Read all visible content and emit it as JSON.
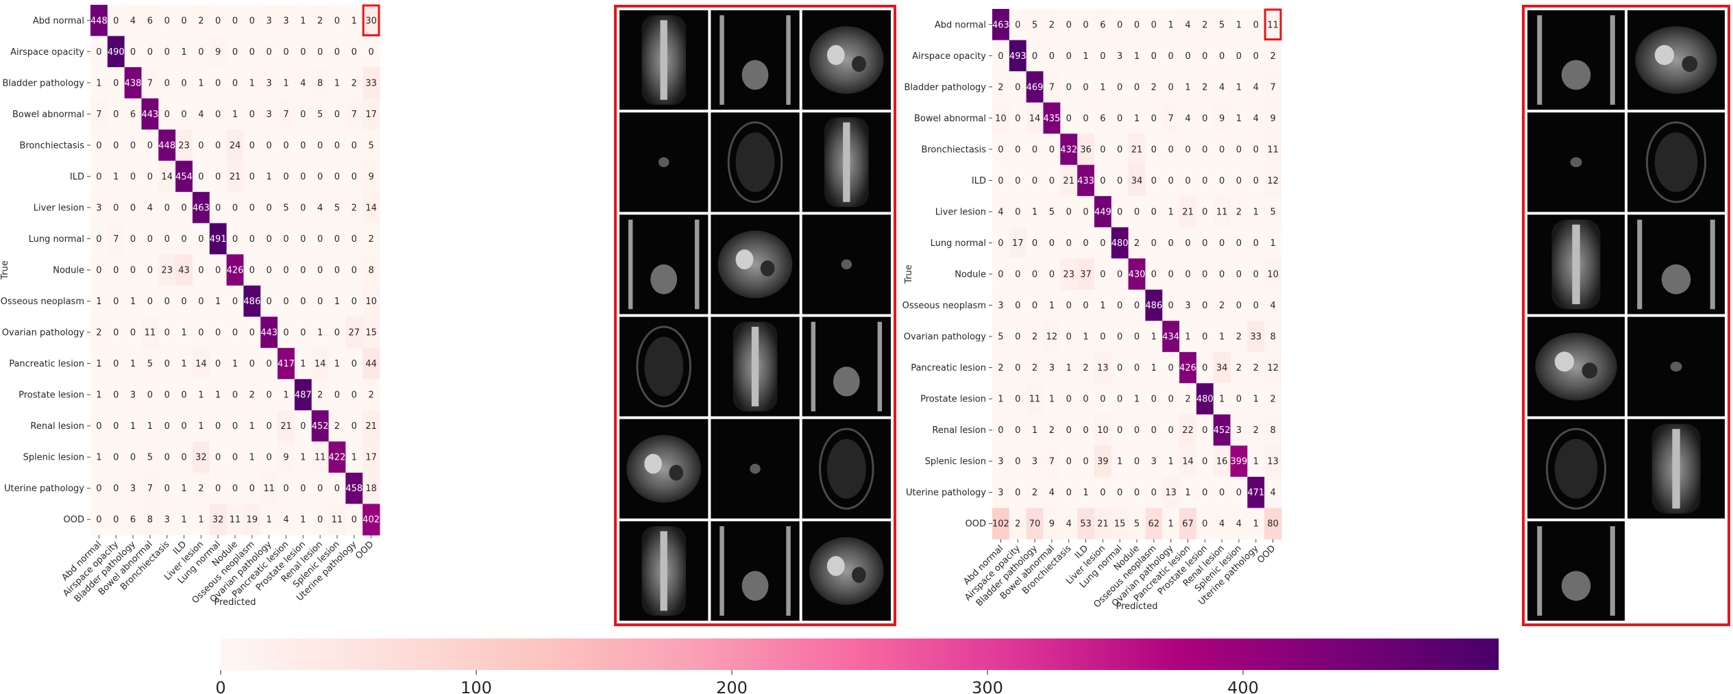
{
  "chart_data": [
    {
      "type": "heatmap",
      "title": "",
      "xlabel": "Predicted",
      "ylabel": "True",
      "row_labels": [
        "Abd normal",
        "Airspace opacity",
        "Bladder pathology",
        "Bowel abnormal",
        "Bronchiectasis",
        "ILD",
        "Liver lesion",
        "Lung normal",
        "Nodule",
        "Osseous neoplasm",
        "Ovarian pathology",
        "Pancreatic lesion",
        "Prostate lesion",
        "Renal lesion",
        "Splenic lesion",
        "Uterine pathology",
        "OOD"
      ],
      "col_labels": [
        "Abd normal",
        "Airspace opacity",
        "Bladder pathology",
        "Bowel abnormal",
        "Bronchiectasis",
        "ILD",
        "Liver lesion",
        "Lung normal",
        "Nodule",
        "Osseous neoplasm",
        "Ovarian pathology",
        "Pancreatic lesion",
        "Prostate lesion",
        "Renal lesion",
        "Splenic lesion",
        "Uterine pathology",
        "OOD"
      ],
      "values": [
        [
          448,
          0,
          4,
          6,
          0,
          0,
          2,
          0,
          0,
          0,
          3,
          3,
          1,
          2,
          0,
          1,
          30
        ],
        [
          0,
          490,
          0,
          0,
          0,
          1,
          0,
          9,
          0,
          0,
          0,
          0,
          0,
          0,
          0,
          0,
          0
        ],
        [
          1,
          0,
          438,
          7,
          0,
          0,
          1,
          0,
          0,
          1,
          3,
          1,
          4,
          8,
          1,
          2,
          33
        ],
        [
          7,
          0,
          6,
          443,
          0,
          0,
          4,
          0,
          1,
          0,
          3,
          7,
          0,
          5,
          0,
          7,
          17
        ],
        [
          0,
          0,
          0,
          0,
          448,
          23,
          0,
          0,
          24,
          0,
          0,
          0,
          0,
          0,
          0,
          0,
          5
        ],
        [
          0,
          1,
          0,
          0,
          14,
          454,
          0,
          0,
          21,
          0,
          1,
          0,
          0,
          0,
          0,
          0,
          9
        ],
        [
          3,
          0,
          0,
          4,
          0,
          0,
          463,
          0,
          0,
          0,
          0,
          5,
          0,
          4,
          5,
          2,
          14
        ],
        [
          0,
          7,
          0,
          0,
          0,
          0,
          0,
          491,
          0,
          0,
          0,
          0,
          0,
          0,
          0,
          0,
          2
        ],
        [
          0,
          0,
          0,
          0,
          23,
          43,
          0,
          0,
          426,
          0,
          0,
          0,
          0,
          0,
          0,
          0,
          8
        ],
        [
          1,
          0,
          1,
          0,
          0,
          0,
          0,
          1,
          0,
          486,
          0,
          0,
          0,
          0,
          1,
          0,
          10
        ],
        [
          2,
          0,
          0,
          11,
          0,
          1,
          0,
          0,
          0,
          0,
          443,
          0,
          0,
          1,
          0,
          27,
          15
        ],
        [
          1,
          0,
          1,
          5,
          0,
          1,
          14,
          0,
          1,
          0,
          0,
          417,
          1,
          14,
          1,
          0,
          44
        ],
        [
          1,
          0,
          3,
          0,
          0,
          0,
          1,
          1,
          0,
          2,
          0,
          1,
          487,
          2,
          0,
          0,
          2
        ],
        [
          0,
          0,
          1,
          1,
          0,
          0,
          1,
          0,
          0,
          1,
          0,
          21,
          0,
          452,
          2,
          0,
          21
        ],
        [
          1,
          0,
          0,
          5,
          0,
          0,
          32,
          0,
          0,
          1,
          0,
          9,
          1,
          11,
          422,
          1,
          17
        ],
        [
          0,
          0,
          3,
          7,
          0,
          1,
          2,
          0,
          0,
          0,
          11,
          0,
          0,
          0,
          0,
          458,
          18
        ],
        [
          0,
          0,
          6,
          8,
          3,
          1,
          1,
          32,
          11,
          19,
          1,
          4,
          1,
          0,
          11,
          0,
          402
        ]
      ],
      "highlight_cell": {
        "row": 0,
        "col": 16,
        "color": "#e8141b"
      }
    },
    {
      "type": "heatmap",
      "title": "",
      "xlabel": "Predicted",
      "ylabel": "True",
      "row_labels": [
        "Abd normal",
        "Airspace opacity",
        "Bladder pathology",
        "Bowel abnormal",
        "Bronchiectasis",
        "ILD",
        "Liver lesion",
        "Lung normal",
        "Nodule",
        "Osseous neoplasm",
        "Ovarian pathology",
        "Pancreatic lesion",
        "Prostate lesion",
        "Renal lesion",
        "Splenic lesion",
        "Uterine pathology",
        "OOD"
      ],
      "col_labels": [
        "Abd normal",
        "Airspace opacity",
        "Bladder pathology",
        "Bowel abnormal",
        "Bronchiectasis",
        "ILD",
        "Liver lesion",
        "Lung normal",
        "Nodule",
        "Osseous neoplasm",
        "Ovarian pathology",
        "Pancreatic lesion",
        "Prostate lesion",
        "Renal lesion",
        "Splenic lesion",
        "Uterine pathology",
        "OOD"
      ],
      "values": [
        [
          463,
          0,
          5,
          2,
          0,
          0,
          6,
          0,
          0,
          0,
          1,
          4,
          2,
          5,
          1,
          0,
          11
        ],
        [
          0,
          493,
          0,
          0,
          0,
          1,
          0,
          3,
          1,
          0,
          0,
          0,
          0,
          0,
          0,
          0,
          2
        ],
        [
          2,
          0,
          469,
          7,
          0,
          0,
          1,
          0,
          0,
          2,
          0,
          1,
          2,
          4,
          1,
          4,
          7
        ],
        [
          10,
          0,
          14,
          435,
          0,
          0,
          6,
          0,
          1,
          0,
          7,
          4,
          0,
          9,
          1,
          4,
          9
        ],
        [
          0,
          0,
          0,
          0,
          432,
          36,
          0,
          0,
          21,
          0,
          0,
          0,
          0,
          0,
          0,
          0,
          11
        ],
        [
          0,
          0,
          0,
          0,
          21,
          433,
          0,
          0,
          34,
          0,
          0,
          0,
          0,
          0,
          0,
          0,
          12
        ],
        [
          4,
          0,
          1,
          5,
          0,
          0,
          449,
          0,
          0,
          0,
          1,
          21,
          0,
          11,
          2,
          1,
          5
        ],
        [
          0,
          17,
          0,
          0,
          0,
          0,
          0,
          480,
          2,
          0,
          0,
          0,
          0,
          0,
          0,
          0,
          1
        ],
        [
          0,
          0,
          0,
          0,
          23,
          37,
          0,
          0,
          430,
          0,
          0,
          0,
          0,
          0,
          0,
          0,
          10
        ],
        [
          3,
          0,
          0,
          1,
          0,
          0,
          1,
          0,
          0,
          486,
          0,
          3,
          0,
          2,
          0,
          0,
          4
        ],
        [
          5,
          0,
          2,
          12,
          0,
          1,
          0,
          0,
          0,
          1,
          434,
          1,
          0,
          1,
          2,
          33,
          8
        ],
        [
          2,
          0,
          2,
          3,
          1,
          2,
          13,
          0,
          0,
          1,
          0,
          426,
          0,
          34,
          2,
          2,
          12
        ],
        [
          1,
          0,
          11,
          1,
          0,
          0,
          0,
          0,
          1,
          0,
          0,
          2,
          480,
          1,
          0,
          1,
          2
        ],
        [
          0,
          0,
          1,
          2,
          0,
          0,
          10,
          0,
          0,
          0,
          0,
          22,
          0,
          452,
          3,
          2,
          8
        ],
        [
          3,
          0,
          3,
          7,
          0,
          0,
          39,
          1,
          0,
          3,
          1,
          14,
          0,
          16,
          399,
          1,
          13
        ],
        [
          3,
          0,
          2,
          4,
          0,
          1,
          0,
          0,
          0,
          0,
          13,
          1,
          0,
          0,
          0,
          471,
          4
        ],
        [
          102,
          2,
          70,
          9,
          4,
          53,
          21,
          15,
          5,
          62,
          1,
          67,
          0,
          4,
          4,
          1,
          80
        ]
      ],
      "highlight_cell": {
        "row": 0,
        "col": 16,
        "color": "#e8141b"
      }
    }
  ],
  "colorbar": {
    "ticks": [
      0,
      100,
      200,
      300,
      400
    ],
    "range": [
      0,
      500
    ],
    "colormap": "RdPu",
    "stops": [
      "#fff7f3",
      "#fde0dd",
      "#fcc5c0",
      "#fa9fb5",
      "#f768a1",
      "#dd3497",
      "#ae017e",
      "#7a0177",
      "#49006a"
    ]
  },
  "image_panels": [
    {
      "name": "left-ood-sample-grid",
      "cols": 3,
      "rows": 6,
      "count": 18,
      "border_color": "#e8141b"
    },
    {
      "name": "right-ood-sample-grid",
      "cols": 2,
      "rows": 6,
      "count": 11,
      "border_color": "#e8141b"
    }
  ]
}
